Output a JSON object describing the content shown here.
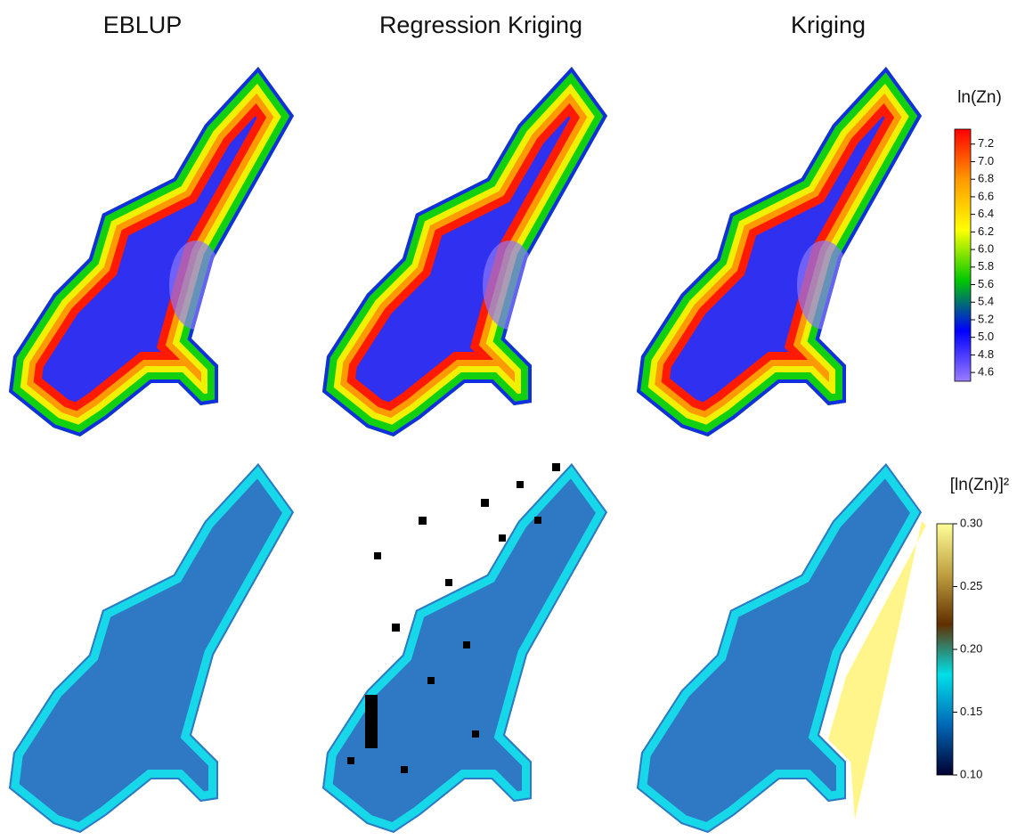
{
  "panels": [
    {
      "title": "EBLUP"
    },
    {
      "title": "Regression Kriging"
    },
    {
      "title": "Kriging"
    }
  ],
  "colorbars": [
    {
      "title": "ln(Zn)",
      "lim": [
        4.5,
        7.37
      ],
      "ticks": [
        4.6,
        4.8,
        {
          "value": 5,
          "label": "5.0"
        },
        5.2,
        5.4,
        5.6,
        5.8,
        {
          "value": 6,
          "label": "6.0"
        },
        6.2,
        6.4,
        6.6,
        6.8,
        {
          "value": 7,
          "label": "7.0"
        },
        7.2
      ],
      "colors": [
        "#9b7bff",
        "#0000ff",
        "#00c800",
        "#ffff00",
        "#ff9900",
        "#ff0000"
      ]
    },
    {
      "title": "[ln(Zn)]²",
      "lim": [
        0.1,
        0.3
      ],
      "ticks": [
        {
          "value": 0.1,
          "label": "0.10"
        },
        0.15,
        {
          "value": 0.2,
          "label": "0.20"
        },
        0.25,
        {
          "value": 0.3,
          "label": "0.30"
        }
      ],
      "colors": [
        "#000030",
        "#0068b8",
        "#00e0e8",
        "#603000",
        "#c0a040",
        "#ffff99"
      ]
    }
  ]
}
